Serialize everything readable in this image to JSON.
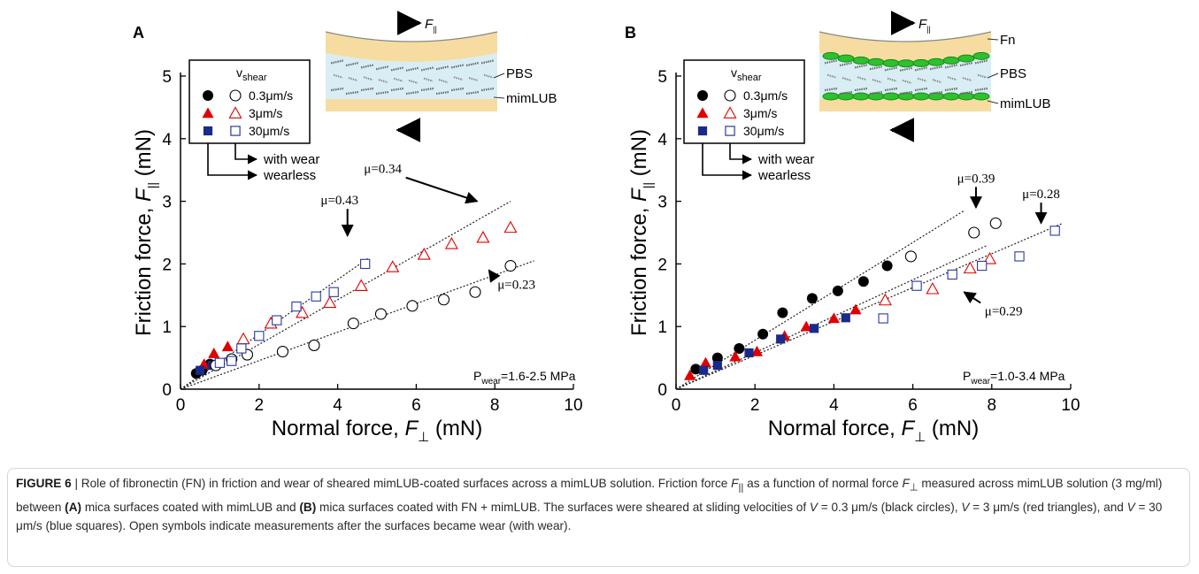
{
  "chart_data": [
    {
      "type": "scatter",
      "panel_label": "A",
      "xlabel": "Normal force, F⊥ (mN)",
      "xlabel_parts": {
        "pre": "Normal force, ",
        "sym": "F",
        "sub": "⊥",
        "post": " (mN)"
      },
      "ylabel_parts": {
        "pre": "Friction force, ",
        "sym": "F",
        "sub": "||",
        "post": " (mN)"
      },
      "xlim": [
        0,
        10
      ],
      "ylim": [
        0,
        5
      ],
      "xticks": [
        0,
        2,
        4,
        6,
        8,
        10
      ],
      "yticks": [
        0,
        1,
        2,
        3,
        4,
        5
      ],
      "legend": {
        "title": "v",
        "title_sub": "shear",
        "entries": [
          "0.3μm/s",
          "3μm/s",
          "30μm/s"
        ],
        "with_wear_label": "with wear",
        "wearless_label": "wearless"
      },
      "series": [
        {
          "name": "0.3μm/s",
          "marker": "circle",
          "fill": "filled",
          "color": "#000000",
          "x": [
            0.4,
            0.55,
            0.75
          ],
          "y": [
            0.25,
            0.3,
            0.4
          ]
        },
        {
          "name": "3μm/s",
          "marker": "triangle",
          "fill": "filled",
          "color": "#e00000",
          "x": [
            0.6,
            0.85,
            1.2
          ],
          "y": [
            0.4,
            0.57,
            0.68
          ]
        },
        {
          "name": "30μm/s",
          "marker": "square",
          "fill": "filled",
          "color": "#1a2a8a",
          "x": [
            0.5,
            0.8
          ],
          "y": [
            0.3,
            0.38
          ]
        },
        {
          "name": "0.3μm/s",
          "marker": "circle",
          "fill": "open",
          "color": "#000000",
          "x": [
            0.9,
            1.3,
            1.7,
            2.6,
            3.4,
            4.4,
            5.1,
            5.9,
            6.7,
            7.5,
            8.4
          ],
          "y": [
            0.38,
            0.48,
            0.55,
            0.6,
            0.7,
            1.05,
            1.2,
            1.33,
            1.43,
            1.55,
            1.97
          ]
        },
        {
          "name": "3μm/s",
          "marker": "triangle",
          "fill": "open",
          "color": "#e00000",
          "x": [
            1.6,
            2.3,
            3.1,
            3.8,
            4.6,
            5.4,
            6.2,
            6.9,
            7.7,
            8.4
          ],
          "y": [
            0.8,
            1.05,
            1.22,
            1.38,
            1.65,
            1.95,
            2.15,
            2.32,
            2.42,
            2.58
          ]
        },
        {
          "name": "30μm/s",
          "marker": "square",
          "fill": "open",
          "color": "#2a3aa0",
          "x": [
            1.0,
            1.3,
            1.55,
            2.0,
            2.45,
            2.95,
            3.45,
            3.9,
            4.7
          ],
          "y": [
            0.42,
            0.45,
            0.65,
            0.85,
            1.1,
            1.32,
            1.48,
            1.55,
            2.0
          ]
        }
      ],
      "fits": [
        {
          "x": [
            0,
            8.4
          ],
          "y": [
            0,
            3.0
          ]
        },
        {
          "x": [
            0,
            4.8
          ],
          "y": [
            0,
            2.1
          ]
        },
        {
          "x": [
            0,
            9.0
          ],
          "y": [
            0,
            2.05
          ]
        }
      ],
      "annotations": [
        {
          "text": "μ=0.34",
          "x": 5.15,
          "y": 3.45,
          "arrow_to": [
            7.55,
            3.0
          ]
        },
        {
          "text": "μ=0.43",
          "x": 4.05,
          "y": 2.95,
          "arrow_to": [
            4.25,
            2.45
          ]
        },
        {
          "text": "μ=0.23",
          "x": 8.55,
          "y": 1.6,
          "arrow_to": [
            7.85,
            1.9
          ]
        }
      ],
      "pressure": {
        "pre": "P",
        "sub": "wear",
        "post": "=1.6-2.5 MPa"
      },
      "schematic": {
        "force_label": "F",
        "force_sub": "||",
        "labels": [
          "PBS",
          "mimLUB"
        ]
      }
    },
    {
      "type": "scatter",
      "panel_label": "B",
      "xlabel": "Normal force, F⊥ (mN)",
      "xlabel_parts": {
        "pre": "Normal force, ",
        "sym": "F",
        "sub": "⊥",
        "post": " (mN)"
      },
      "ylabel_parts": {
        "pre": "Friction force, ",
        "sym": "F",
        "sub": "||",
        "post": " (mN)"
      },
      "xlim": [
        0,
        10
      ],
      "ylim": [
        0,
        5
      ],
      "xticks": [
        0,
        2,
        4,
        6,
        8,
        10
      ],
      "yticks": [
        0,
        1,
        2,
        3,
        4,
        5
      ],
      "legend": {
        "title": "v",
        "title_sub": "shear",
        "entries": [
          "0.3μm/s",
          "3μm/s",
          "30μm/s"
        ],
        "with_wear_label": "with wear",
        "wearless_label": "wearless"
      },
      "series": [
        {
          "name": "0.3μm/s",
          "marker": "circle",
          "fill": "filled",
          "color": "#000000",
          "x": [
            0.5,
            1.05,
            1.6,
            2.2,
            2.7,
            3.45,
            4.1,
            4.75,
            5.35
          ],
          "y": [
            0.32,
            0.5,
            0.65,
            0.88,
            1.22,
            1.45,
            1.57,
            1.72,
            1.97
          ]
        },
        {
          "name": "3μm/s",
          "marker": "triangle",
          "fill": "filled",
          "color": "#e00000",
          "x": [
            0.35,
            0.75,
            1.5,
            2.05,
            2.75,
            3.3,
            4.0,
            4.55
          ],
          "y": [
            0.22,
            0.42,
            0.52,
            0.6,
            0.85,
            1.0,
            1.13,
            1.27
          ]
        },
        {
          "name": "30μm/s",
          "marker": "square",
          "fill": "filled",
          "color": "#1a2a8a",
          "x": [
            0.7,
            1.05,
            1.85,
            2.65,
            3.5,
            4.3
          ],
          "y": [
            0.3,
            0.38,
            0.58,
            0.8,
            0.97,
            1.14
          ]
        },
        {
          "name": "0.3μm/s",
          "marker": "circle",
          "fill": "open",
          "color": "#000000",
          "x": [
            5.95,
            7.55,
            8.1
          ],
          "y": [
            2.12,
            2.5,
            2.65
          ]
        },
        {
          "name": "3μm/s",
          "marker": "triangle",
          "fill": "open",
          "color": "#e00000",
          "x": [
            5.3,
            6.5,
            7.45,
            7.95
          ],
          "y": [
            1.42,
            1.6,
            1.93,
            2.08
          ]
        },
        {
          "name": "30μm/s",
          "marker": "square",
          "fill": "open",
          "color": "#2a3aa0",
          "x": [
            5.25,
            6.1,
            7.0,
            7.75,
            8.7,
            9.6
          ],
          "y": [
            1.13,
            1.65,
            1.83,
            1.97,
            2.12,
            2.53
          ]
        }
      ],
      "fits": [
        {
          "x": [
            0,
            7.3
          ],
          "y": [
            0,
            2.85
          ]
        },
        {
          "x": [
            0,
            7.9
          ],
          "y": [
            0,
            2.3
          ]
        },
        {
          "x": [
            0,
            9.8
          ],
          "y": [
            0,
            2.65
          ]
        }
      ],
      "annotations": [
        {
          "text": "μ=0.39",
          "x": 7.6,
          "y": 3.3,
          "arrow_to": [
            7.6,
            2.9
          ]
        },
        {
          "text": "μ=0.28",
          "x": 9.25,
          "y": 3.05,
          "arrow_to": [
            9.25,
            2.65
          ]
        },
        {
          "text": "μ=0.29",
          "x": 8.3,
          "y": 1.18,
          "arrow_to": [
            7.3,
            1.55
          ]
        }
      ],
      "pressure": {
        "pre": "P",
        "sub": "wear",
        "post": "=1.0-3.4 MPa"
      },
      "schematic": {
        "force_label": "F",
        "force_sub": "||",
        "labels": [
          "Fn",
          "PBS",
          "mimLUB"
        ]
      }
    }
  ],
  "caption": {
    "lead": "FIGURE 6",
    "sep": " | ",
    "t1": "Role of fibronectin (FN) in friction and wear of sheared mimLUB-coated surfaces across a mimLUB solution. Friction force ",
    "t1_sym": "F",
    "t1_sub": "||",
    "t2": " as a function of normal force ",
    "t2_sym": "F",
    "t2_sub": "⊥",
    "t3": " measured across mimLUB solution (3 mg/ml) between ",
    "ref_a": "(A)",
    "t4": " mica surfaces coated with mimLUB and ",
    "ref_b": "(B)",
    "t5": " mica surfaces coated with FN + mimLUB. The surfaces were sheared at sliding velocities of ",
    "v1_sym": "V",
    "v1": " = 0.3 μm/s (black circles), ",
    "v2_sym": "V",
    "v2": " = 3 μm/s (red triangles), and ",
    "v3_sym": "V",
    "v3": " = 30 μm/s (blue squares). Open symbols indicate measurements after the surfaces became wear (with wear)."
  }
}
